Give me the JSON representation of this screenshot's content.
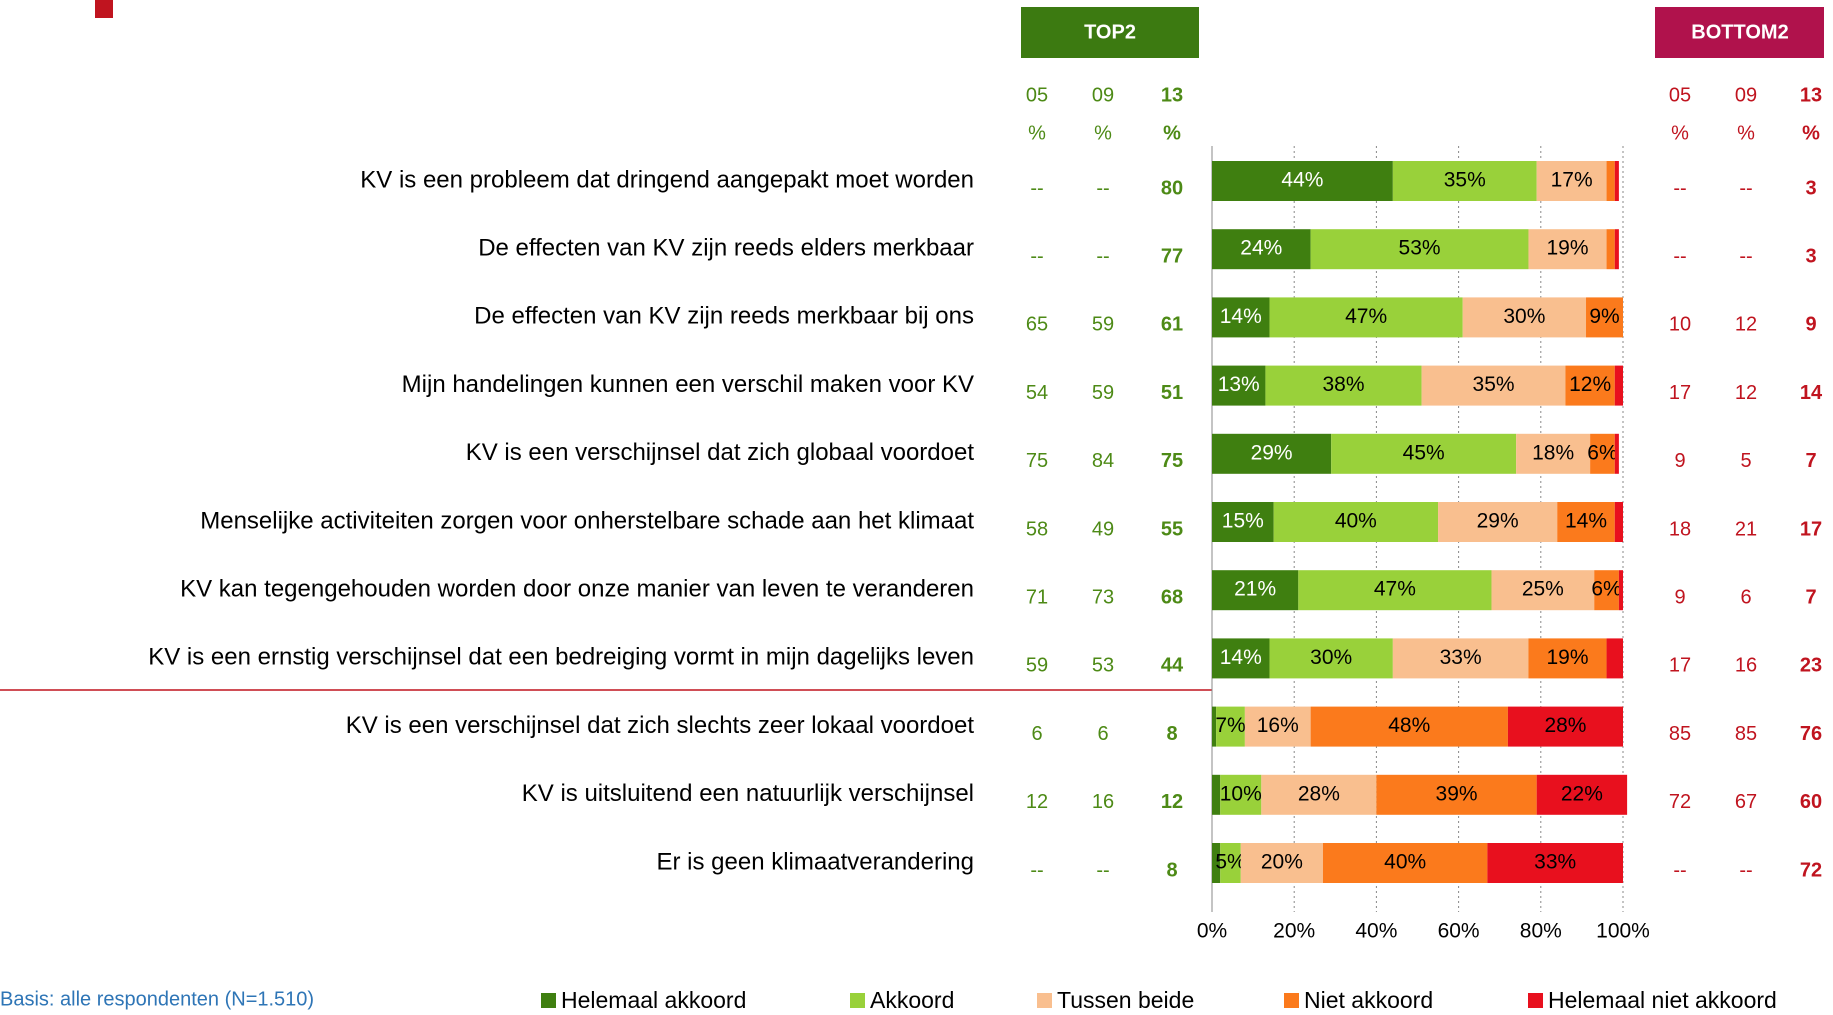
{
  "chart_data": {
    "type": "stacked_bar_horizontal",
    "categories": [
      "KV is een probleem dat dringend aangepakt moet worden",
      "De effecten van KV zijn reeds elders merkbaar",
      "De effecten van KV zijn reeds merkbaar bij ons",
      "Mijn handelingen kunnen een verschil maken voor KV",
      "KV is een verschijnsel dat zich globaal voordoet",
      "Menselijke activiteiten zorgen voor onherstelbare schade aan het klimaat",
      "KV kan tegengehouden worden door onze manier van leven te veranderen",
      "KV is een ernstig verschijnsel dat een bedreiging vormt in mijn dagelijks leven",
      "KV is een verschijnsel dat zich slechts zeer lokaal voordoet",
      "KV is uitsluitend een natuurlijk verschijnsel",
      "Er is geen klimaatverandering"
    ],
    "series": [
      {
        "name": "Helemaal akkoord",
        "color": "#3f7f10",
        "values": [
          44,
          24,
          14,
          13,
          29,
          15,
          21,
          14,
          1,
          2,
          2
        ],
        "value_labels": [
          "44%",
          "24%",
          "14%",
          "13%",
          "29%",
          "15%",
          "21%",
          "14%",
          null,
          null,
          null
        ]
      },
      {
        "name": "Akkoord",
        "color": "#99d13a",
        "values": [
          35,
          53,
          47,
          38,
          45,
          40,
          47,
          30,
          7,
          10,
          5
        ],
        "value_labels": [
          "35%",
          "53%",
          "47%",
          "38%",
          "45%",
          "40%",
          "47%",
          "30%",
          "7%",
          "10%",
          "5%"
        ]
      },
      {
        "name": "Tussen beide",
        "color": "#f9bf8f",
        "values": [
          17,
          19,
          30,
          35,
          18,
          29,
          25,
          33,
          16,
          28,
          20
        ],
        "value_labels": [
          "17%",
          "19%",
          "30%",
          "35%",
          "18%",
          "29%",
          "25%",
          "33%",
          "16%",
          "28%",
          "20%"
        ]
      },
      {
        "name": "Niet akkoord",
        "color": "#fb7a1c",
        "values": [
          2,
          2,
          9,
          12,
          6,
          14,
          6,
          19,
          48,
          39,
          40
        ],
        "value_labels": [
          null,
          null,
          "9%",
          "12%",
          "6%",
          "14%",
          "6%",
          "19%",
          "48%",
          "39%",
          "40%"
        ]
      },
      {
        "name": "Helemaal niet akkoord",
        "color": "#e8101e",
        "values": [
          1,
          1,
          0,
          2,
          1,
          2,
          1,
          4,
          28,
          22,
          33
        ],
        "value_labels": [
          null,
          null,
          null,
          null,
          null,
          null,
          null,
          null,
          "28%",
          "22%",
          "33%"
        ]
      }
    ],
    "xlim": [
      0,
      100
    ],
    "xticks": [
      {
        "value": 0,
        "label": "0%"
      },
      {
        "value": 20,
        "label": "20%"
      },
      {
        "value": 40,
        "label": "40%"
      },
      {
        "value": 60,
        "label": "60%"
      },
      {
        "value": 80,
        "label": "80%"
      },
      {
        "value": 100,
        "label": "100%"
      }
    ],
    "grid": true,
    "legend": "bottom",
    "top2": {
      "title": "TOP2",
      "columns": [
        "05",
        "09",
        "13"
      ],
      "unit": "%",
      "color": "#4d8a16",
      "values": [
        [
          "--",
          "--",
          80
        ],
        [
          "--",
          "--",
          77
        ],
        [
          65,
          59,
          61
        ],
        [
          54,
          59,
          51
        ],
        [
          75,
          84,
          75
        ],
        [
          58,
          49,
          55
        ],
        [
          71,
          73,
          68
        ],
        [
          59,
          53,
          44
        ],
        [
          6,
          6,
          8
        ],
        [
          12,
          16,
          12
        ],
        [
          "--",
          "--",
          8
        ]
      ]
    },
    "bottom2": {
      "title": "BOTTOM2",
      "columns": [
        "05",
        "09",
        "13"
      ],
      "unit": "%",
      "color": "#c0141f",
      "values": [
        [
          "--",
          "--",
          3
        ],
        [
          "--",
          "--",
          3
        ],
        [
          10,
          12,
          9
        ],
        [
          17,
          12,
          14
        ],
        [
          9,
          5,
          7
        ],
        [
          18,
          21,
          17
        ],
        [
          9,
          6,
          7
        ],
        [
          17,
          16,
          23
        ],
        [
          85,
          85,
          76
        ],
        [
          72,
          67,
          60
        ],
        [
          "--",
          "--",
          72
        ]
      ]
    },
    "note": "Basis: alle respondenten (N=1.510)"
  }
}
